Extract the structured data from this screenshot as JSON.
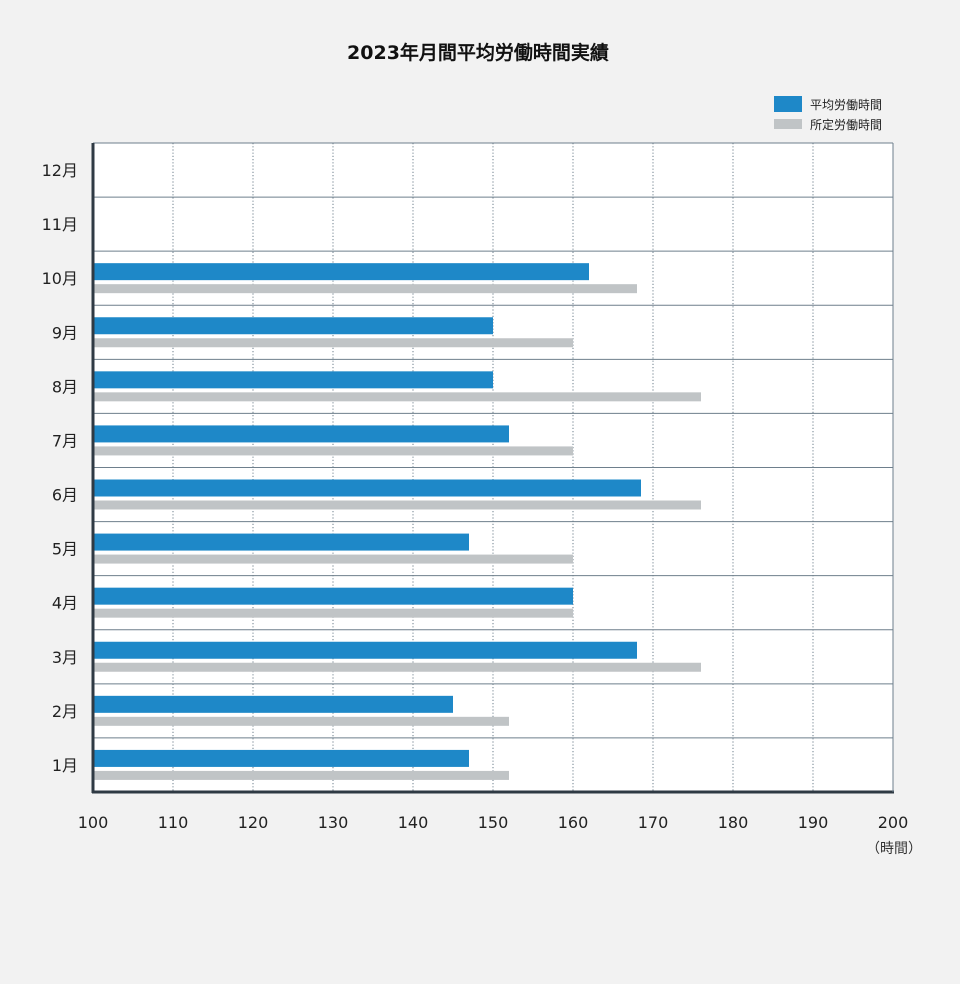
{
  "title": "2023年月間平均労働時間実績",
  "unit": "（時間）",
  "colors": {
    "average": "#1e88c8",
    "scheduled": "#c0c4c6",
    "grid": "#6e7f8c",
    "axis": "#2f3a44",
    "plot_bg": "#ffffff"
  },
  "chart_data": {
    "type": "bar",
    "orientation": "horizontal",
    "title": "2023年月間平均労働時間実績",
    "xlabel": "（時間）",
    "ylabel": "",
    "xlim": [
      100,
      200
    ],
    "x_ticks": [
      100,
      110,
      120,
      130,
      140,
      150,
      160,
      170,
      180,
      190,
      200
    ],
    "grid": true,
    "legend_position": "top-right",
    "categories": [
      "1月",
      "2月",
      "3月",
      "4月",
      "5月",
      "6月",
      "7月",
      "8月",
      "9月",
      "10月",
      "11月",
      "12月"
    ],
    "series": [
      {
        "name": "平均労働時間",
        "color": "#1e88c8",
        "values": [
          147,
          145,
          168,
          160,
          147,
          168.5,
          152,
          150,
          150,
          162,
          null,
          null
        ]
      },
      {
        "name": "所定労働時間",
        "color": "#c0c4c6",
        "values": [
          152,
          152,
          176,
          160,
          160,
          176,
          160,
          176,
          160,
          168,
          null,
          null
        ]
      }
    ]
  }
}
